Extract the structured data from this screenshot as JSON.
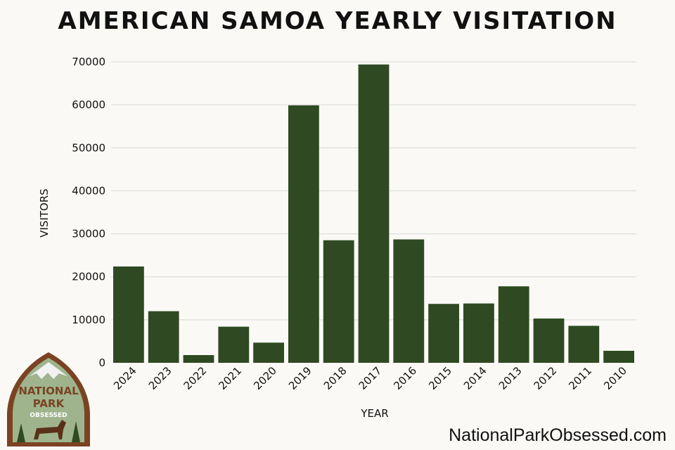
{
  "title": "AMERICAN SAMOA YEARLY VISITATION",
  "site_url": "NationalParkObsessed.com",
  "logo": {
    "line1": "NATIONAL",
    "line2": "PARK",
    "line3": "OBSESSED"
  },
  "colors": {
    "bar": "#2f4a22",
    "grid": "#d8d8d8",
    "background": "#faf9f6"
  },
  "chart_data": {
    "type": "bar",
    "xlabel": "YEAR",
    "ylabel": "VISITORS",
    "ylim": [
      0,
      70000
    ],
    "yticks": [
      0,
      10000,
      20000,
      30000,
      40000,
      50000,
      60000,
      70000
    ],
    "grid": true,
    "categories": [
      "2024",
      "2023",
      "2022",
      "2021",
      "2020",
      "2019",
      "2018",
      "2017",
      "2016",
      "2015",
      "2014",
      "2013",
      "2012",
      "2011",
      "2010"
    ],
    "values": [
      22400,
      12000,
      1800,
      8400,
      4700,
      59900,
      28500,
      69400,
      28700,
      13700,
      13800,
      17800,
      10300,
      8600,
      2800
    ]
  }
}
